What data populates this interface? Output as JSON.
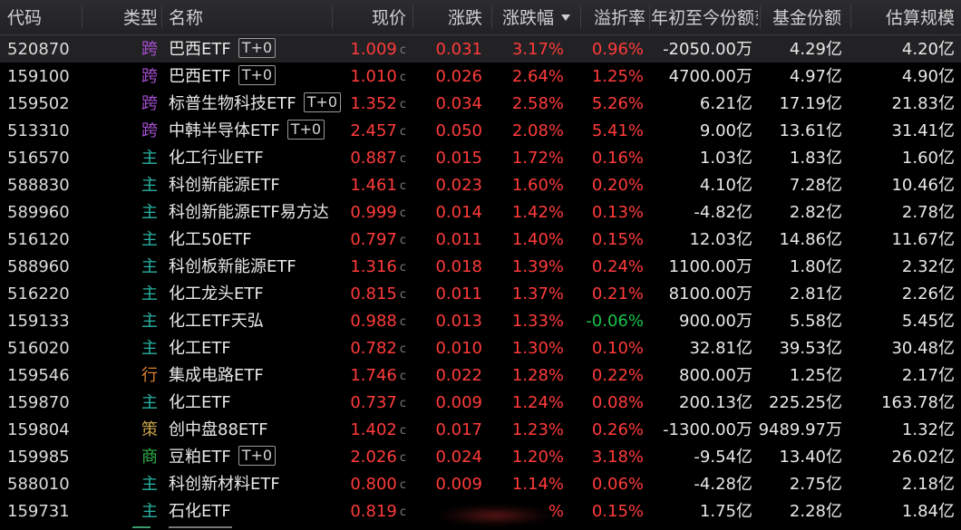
{
  "colors": {
    "up": "#ff3b3b",
    "down": "#19c24a",
    "type_cross": "#a64fd0",
    "type_main": "#29b3a5",
    "type_industry": "#d9822b",
    "type_strategy": "#c9a24a",
    "type_commodity": "#2fb24a",
    "background": "#000000",
    "header_bg": "#2a2a2e"
  },
  "header": {
    "code": "代码",
    "type": "类型",
    "name": "名称",
    "price": "现价",
    "change": "涨跌",
    "pct": "涨跌幅",
    "premium": "溢折率",
    "ytd": "年初至今份额变",
    "shares": "基金份额",
    "scale": "估算规模",
    "sort_icon": "sort-desc-icon"
  },
  "rows": [
    {
      "code": "520870",
      "type": "跨",
      "type_kind": "cross",
      "name": "巴西ETF",
      "tag": "T+0",
      "price": "1.009",
      "price_suffix": "c",
      "change": "0.031",
      "pct": "3.17%",
      "premium": "0.96%",
      "premium_dir": "up",
      "ytd": "-2050.00万",
      "shares": "4.29亿",
      "scale": "4.20亿",
      "selected": true
    },
    {
      "code": "159100",
      "type": "跨",
      "type_kind": "cross",
      "name": "巴西ETF",
      "tag": "T+0",
      "price": "1.010",
      "price_suffix": "c",
      "change": "0.026",
      "pct": "2.64%",
      "premium": "1.25%",
      "premium_dir": "up",
      "ytd": "4700.00万",
      "shares": "4.97亿",
      "scale": "4.90亿"
    },
    {
      "code": "159502",
      "type": "跨",
      "type_kind": "cross",
      "name": "标普生物科技ETF",
      "tag": "T+0",
      "price": "1.352",
      "price_suffix": "c",
      "change": "0.034",
      "pct": "2.58%",
      "premium": "5.26%",
      "premium_dir": "up",
      "ytd": "6.21亿",
      "shares": "17.19亿",
      "scale": "21.83亿"
    },
    {
      "code": "513310",
      "type": "跨",
      "type_kind": "cross",
      "name": "中韩半导体ETF",
      "tag": "T+0",
      "price": "2.457",
      "price_suffix": "c",
      "change": "0.050",
      "pct": "2.08%",
      "premium": "5.41%",
      "premium_dir": "up",
      "ytd": "9.00亿",
      "shares": "13.61亿",
      "scale": "31.41亿"
    },
    {
      "code": "516570",
      "type": "主",
      "type_kind": "main",
      "name": "化工行业ETF",
      "tag": "",
      "price": "0.887",
      "price_suffix": "c",
      "change": "0.015",
      "pct": "1.72%",
      "premium": "0.16%",
      "premium_dir": "up",
      "ytd": "1.03亿",
      "shares": "1.83亿",
      "scale": "1.60亿"
    },
    {
      "code": "588830",
      "type": "主",
      "type_kind": "main",
      "name": "科创新能源ETF",
      "tag": "",
      "price": "1.461",
      "price_suffix": "c",
      "change": "0.023",
      "pct": "1.60%",
      "premium": "0.20%",
      "premium_dir": "up",
      "ytd": "4.10亿",
      "shares": "7.28亿",
      "scale": "10.46亿"
    },
    {
      "code": "589960",
      "type": "主",
      "type_kind": "main",
      "name": "科创新能源ETF易方达",
      "tag": "",
      "price": "0.999",
      "price_suffix": "c",
      "change": "0.014",
      "pct": "1.42%",
      "premium": "0.13%",
      "premium_dir": "up",
      "ytd": "-4.82亿",
      "shares": "2.82亿",
      "scale": "2.78亿"
    },
    {
      "code": "516120",
      "type": "主",
      "type_kind": "main",
      "name": "化工50ETF",
      "tag": "",
      "price": "0.797",
      "price_suffix": "c",
      "change": "0.011",
      "pct": "1.40%",
      "premium": "0.15%",
      "premium_dir": "up",
      "ytd": "12.03亿",
      "shares": "14.86亿",
      "scale": "11.67亿"
    },
    {
      "code": "588960",
      "type": "主",
      "type_kind": "main",
      "name": "科创板新能源ETF",
      "tag": "",
      "price": "1.316",
      "price_suffix": "c",
      "change": "0.018",
      "pct": "1.39%",
      "premium": "0.24%",
      "premium_dir": "up",
      "ytd": "1100.00万",
      "shares": "1.80亿",
      "scale": "2.32亿"
    },
    {
      "code": "516220",
      "type": "主",
      "type_kind": "main",
      "name": "化工龙头ETF",
      "tag": "",
      "price": "0.815",
      "price_suffix": "c",
      "change": "0.011",
      "pct": "1.37%",
      "premium": "0.21%",
      "premium_dir": "up",
      "ytd": "8100.00万",
      "shares": "2.81亿",
      "scale": "2.26亿"
    },
    {
      "code": "159133",
      "type": "主",
      "type_kind": "main",
      "name": "化工ETF天弘",
      "tag": "",
      "price": "0.988",
      "price_suffix": "c",
      "change": "0.013",
      "pct": "1.33%",
      "premium": "-0.06%",
      "premium_dir": "down",
      "ytd": "900.00万",
      "shares": "5.58亿",
      "scale": "5.45亿"
    },
    {
      "code": "516020",
      "type": "主",
      "type_kind": "main",
      "name": "化工ETF",
      "tag": "",
      "price": "0.782",
      "price_suffix": "c",
      "change": "0.010",
      "pct": "1.30%",
      "premium": "0.10%",
      "premium_dir": "up",
      "ytd": "32.81亿",
      "shares": "39.53亿",
      "scale": "30.48亿"
    },
    {
      "code": "159546",
      "type": "行",
      "type_kind": "industry",
      "name": "集成电路ETF",
      "tag": "",
      "price": "1.746",
      "price_suffix": "c",
      "change": "0.022",
      "pct": "1.28%",
      "premium": "0.22%",
      "premium_dir": "up",
      "ytd": "800.00万",
      "shares": "1.25亿",
      "scale": "2.17亿"
    },
    {
      "code": "159870",
      "type": "主",
      "type_kind": "main",
      "name": "化工ETF",
      "tag": "",
      "price": "0.737",
      "price_suffix": "c",
      "change": "0.009",
      "pct": "1.24%",
      "premium": "0.08%",
      "premium_dir": "up",
      "ytd": "200.13亿",
      "shares": "225.25亿",
      "scale": "163.78亿"
    },
    {
      "code": "159804",
      "type": "策",
      "type_kind": "strategy",
      "name": "创中盘88ETF",
      "tag": "",
      "price": "1.402",
      "price_suffix": "c",
      "change": "0.017",
      "pct": "1.23%",
      "premium": "0.26%",
      "premium_dir": "up",
      "ytd": "-1300.00万",
      "shares": "9489.97万",
      "scale": "1.32亿"
    },
    {
      "code": "159985",
      "type": "商",
      "type_kind": "commodity",
      "name": "豆粕ETF",
      "tag": "T+0",
      "price": "2.026",
      "price_suffix": "c",
      "change": "0.024",
      "pct": "1.20%",
      "premium": "3.18%",
      "premium_dir": "up",
      "ytd": "-9.54亿",
      "shares": "13.40亿",
      "scale": "26.02亿"
    },
    {
      "code": "588010",
      "type": "主",
      "type_kind": "main",
      "name": "科创新材料ETF",
      "tag": "",
      "price": "0.800",
      "price_suffix": "c",
      "change": "0.009",
      "pct": "1.14%",
      "premium": "0.06%",
      "premium_dir": "up",
      "ytd": "-4.28亿",
      "shares": "2.75亿",
      "scale": "2.18亿"
    },
    {
      "code": "159731",
      "type": "主",
      "type_kind": "main",
      "name": "石化ETF",
      "tag": "",
      "price": "0.819",
      "price_suffix": "c",
      "change": "",
      "pct": "%",
      "premium": "0.15%",
      "premium_dir": "up",
      "ytd": "1.75亿",
      "shares": "2.28亿",
      "scale": "1.84亿",
      "obscured": true
    }
  ]
}
